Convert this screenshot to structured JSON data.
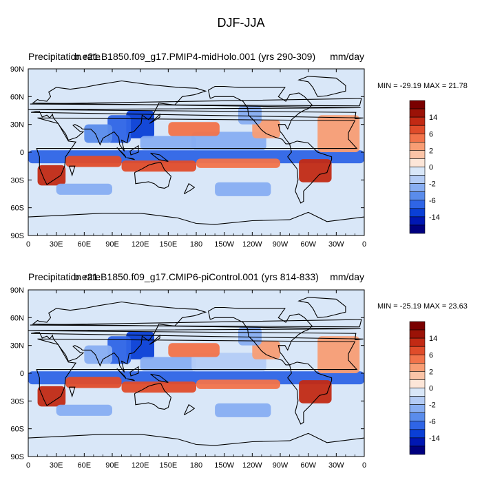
{
  "title": "DJF-JJA",
  "chart_data": [
    {
      "type": "heatmap",
      "variable_label": "Precipitation rate",
      "case_label": "b.e21.B1850.f09_g17.PMIP4-midHolo.001 (yrs 290-309)",
      "units": "mm/day",
      "min_max_text": "MIN = -29.19 MAX =  21.78",
      "min": -29.19,
      "max": 21.78,
      "x_ticks": [
        "0",
        "30E",
        "60E",
        "90E",
        "120E",
        "150E",
        "180",
        "150W",
        "120W",
        "90W",
        "60W",
        "30W",
        "0"
      ],
      "y_ticks": [
        "90N",
        "60N",
        "30N",
        "0",
        "30S",
        "60S",
        "90S"
      ],
      "xlim": [
        0,
        360
      ],
      "ylim": [
        -90,
        90
      ],
      "label_bar": [
        "14",
        "6",
        "2",
        "0",
        "-2",
        "-6",
        "-14"
      ],
      "cells": [
        {
          "lon": 0,
          "lat": -5,
          "w": 360,
          "h": 14,
          "v": -8
        },
        {
          "lon": 105,
          "lat": 30,
          "w": 30,
          "h": 30,
          "v": -12
        },
        {
          "lon": 85,
          "lat": 25,
          "w": 25,
          "h": 30,
          "v": -10
        },
        {
          "lon": 60,
          "lat": 20,
          "w": 30,
          "h": 20,
          "v": -5
        },
        {
          "lon": 120,
          "lat": 10,
          "w": 60,
          "h": 15,
          "v": -3
        },
        {
          "lon": 175,
          "lat": 12,
          "w": 80,
          "h": 20,
          "v": -3
        },
        {
          "lon": 10,
          "lat": -25,
          "w": 30,
          "h": 22,
          "v": 10
        },
        {
          "lon": 40,
          "lat": -10,
          "w": 60,
          "h": 12,
          "v": 6
        },
        {
          "lon": 100,
          "lat": -15,
          "w": 80,
          "h": 12,
          "v": 6
        },
        {
          "lon": 180,
          "lat": -12,
          "w": 90,
          "h": 10,
          "v": 5
        },
        {
          "lon": 290,
          "lat": -20,
          "w": 35,
          "h": 25,
          "v": 12
        },
        {
          "lon": 150,
          "lat": 25,
          "w": 55,
          "h": 15,
          "v": 4
        },
        {
          "lon": 240,
          "lat": 25,
          "w": 30,
          "h": 20,
          "v": 3
        },
        {
          "lon": 310,
          "lat": 20,
          "w": 45,
          "h": 40,
          "v": 3
        },
        {
          "lon": 225,
          "lat": 40,
          "w": 25,
          "h": 20,
          "v": -4
        },
        {
          "lon": 0,
          "lat": -75,
          "w": 360,
          "h": 25,
          "v": -1
        },
        {
          "lon": 200,
          "lat": -40,
          "w": 60,
          "h": 15,
          "v": -3
        },
        {
          "lon": 30,
          "lat": -40,
          "w": 60,
          "h": 12,
          "v": -3
        }
      ]
    },
    {
      "type": "heatmap",
      "variable_label": "Precipitation rate",
      "case_label": "b.e21.B1850.f09_g17.CMIP6-piControl.001 (yrs 814-833)",
      "units": "mm/day",
      "min_max_text": "MIN = -25.19 MAX =  23.63",
      "min": -25.19,
      "max": 23.63,
      "x_ticks": [
        "0",
        "30E",
        "60E",
        "90E",
        "120E",
        "150E",
        "180",
        "150W",
        "120W",
        "90W",
        "60W",
        "30W",
        "0"
      ],
      "y_ticks": [
        "90N",
        "60N",
        "30N",
        "0",
        "30S",
        "60S",
        "90S"
      ],
      "xlim": [
        0,
        360
      ],
      "ylim": [
        -90,
        90
      ],
      "label_bar": [
        "14",
        "6",
        "2",
        "0",
        "-2",
        "-6",
        "-14"
      ],
      "cells": [
        {
          "lon": 0,
          "lat": -5,
          "w": 360,
          "h": 14,
          "v": -7
        },
        {
          "lon": 105,
          "lat": 30,
          "w": 30,
          "h": 30,
          "v": -12
        },
        {
          "lon": 85,
          "lat": 25,
          "w": 25,
          "h": 30,
          "v": -9
        },
        {
          "lon": 60,
          "lat": 20,
          "w": 30,
          "h": 20,
          "v": -4
        },
        {
          "lon": 120,
          "lat": 10,
          "w": 60,
          "h": 15,
          "v": -3
        },
        {
          "lon": 175,
          "lat": 12,
          "w": 80,
          "h": 20,
          "v": -2
        },
        {
          "lon": 10,
          "lat": -25,
          "w": 30,
          "h": 22,
          "v": 10
        },
        {
          "lon": 40,
          "lat": -10,
          "w": 60,
          "h": 12,
          "v": 6
        },
        {
          "lon": 100,
          "lat": -15,
          "w": 80,
          "h": 12,
          "v": 6
        },
        {
          "lon": 180,
          "lat": -12,
          "w": 90,
          "h": 10,
          "v": 4
        },
        {
          "lon": 290,
          "lat": -20,
          "w": 35,
          "h": 25,
          "v": 12
        },
        {
          "lon": 150,
          "lat": 25,
          "w": 55,
          "h": 15,
          "v": 4
        },
        {
          "lon": 240,
          "lat": 25,
          "w": 30,
          "h": 20,
          "v": 3
        },
        {
          "lon": 310,
          "lat": 20,
          "w": 45,
          "h": 40,
          "v": 3
        },
        {
          "lon": 225,
          "lat": 40,
          "w": 25,
          "h": 20,
          "v": -4
        },
        {
          "lon": 0,
          "lat": -75,
          "w": 360,
          "h": 25,
          "v": -1
        },
        {
          "lon": 200,
          "lat": -40,
          "w": 60,
          "h": 15,
          "v": -3
        },
        {
          "lon": 30,
          "lat": -40,
          "w": 60,
          "h": 12,
          "v": -3
        }
      ]
    }
  ],
  "colorbar": {
    "levels": [
      -18,
      -14,
      -10,
      -6,
      -4,
      -2,
      -1,
      0,
      1,
      2,
      4,
      6,
      10,
      14,
      18
    ],
    "colors": [
      "#00007f",
      "#0017b3",
      "#0a3fd6",
      "#2f65e6",
      "#5a8ceb",
      "#88aef2",
      "#b4ccf5",
      "#d9e7f8",
      "#fde6d8",
      "#fbc4a7",
      "#f89d74",
      "#f2734a",
      "#e04c2a",
      "#c22a14",
      "#9b1207",
      "#7a0000"
    ],
    "background": "#d9e7f8",
    "land_line": "#000000"
  }
}
